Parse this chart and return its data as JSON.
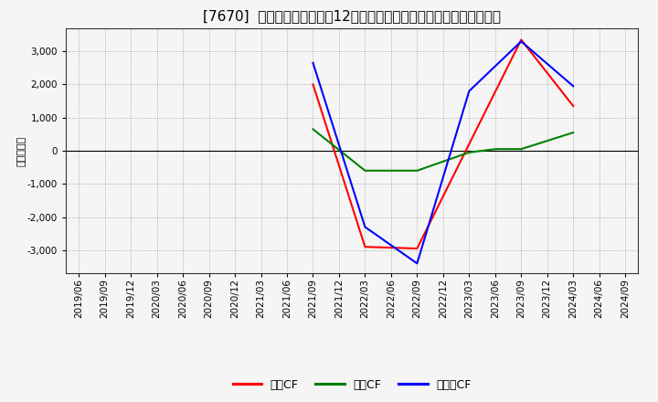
{
  "title": "[7670]  キャッシュフローの12か月移動合計の対前年同期増減額の推移",
  "ylabel": "（百万円）",
  "background_color": "#f5f5f5",
  "plot_background_color": "#f5f5f5",
  "grid_color": "#999999",
  "ylim": [
    -3700,
    3700
  ],
  "yticks": [
    -3000,
    -2000,
    -1000,
    0,
    1000,
    2000,
    3000
  ],
  "dates_str": [
    "2019/06",
    "2019/09",
    "2019/12",
    "2020/03",
    "2020/06",
    "2020/09",
    "2020/12",
    "2021/03",
    "2021/06",
    "2021/09",
    "2021/12",
    "2022/03",
    "2022/06",
    "2022/09",
    "2022/12",
    "2023/03",
    "2023/06",
    "2023/09",
    "2023/12",
    "2024/03",
    "2024/06",
    "2024/09"
  ],
  "op_x": [
    9,
    11,
    13,
    17,
    19
  ],
  "op_y": [
    2000,
    -2900,
    -2950,
    3350,
    1350
  ],
  "inv_x": [
    9,
    11,
    13,
    15,
    16,
    17,
    19
  ],
  "inv_y": [
    650,
    -600,
    -600,
    -50,
    50,
    50,
    550
  ],
  "free_x": [
    9,
    11,
    13,
    15,
    17,
    19
  ],
  "free_y": [
    2650,
    -2300,
    -3400,
    1800,
    3300,
    1950
  ],
  "color_op": "#ff0000",
  "color_inv": "#008000",
  "color_free": "#0000ff",
  "legend_labels": [
    "営業CF",
    "投資CF",
    "フリーCF"
  ],
  "line_width": 1.5,
  "title_fontsize": 11,
  "axis_fontsize": 8,
  "tick_fontsize": 7.5,
  "legend_fontsize": 9
}
